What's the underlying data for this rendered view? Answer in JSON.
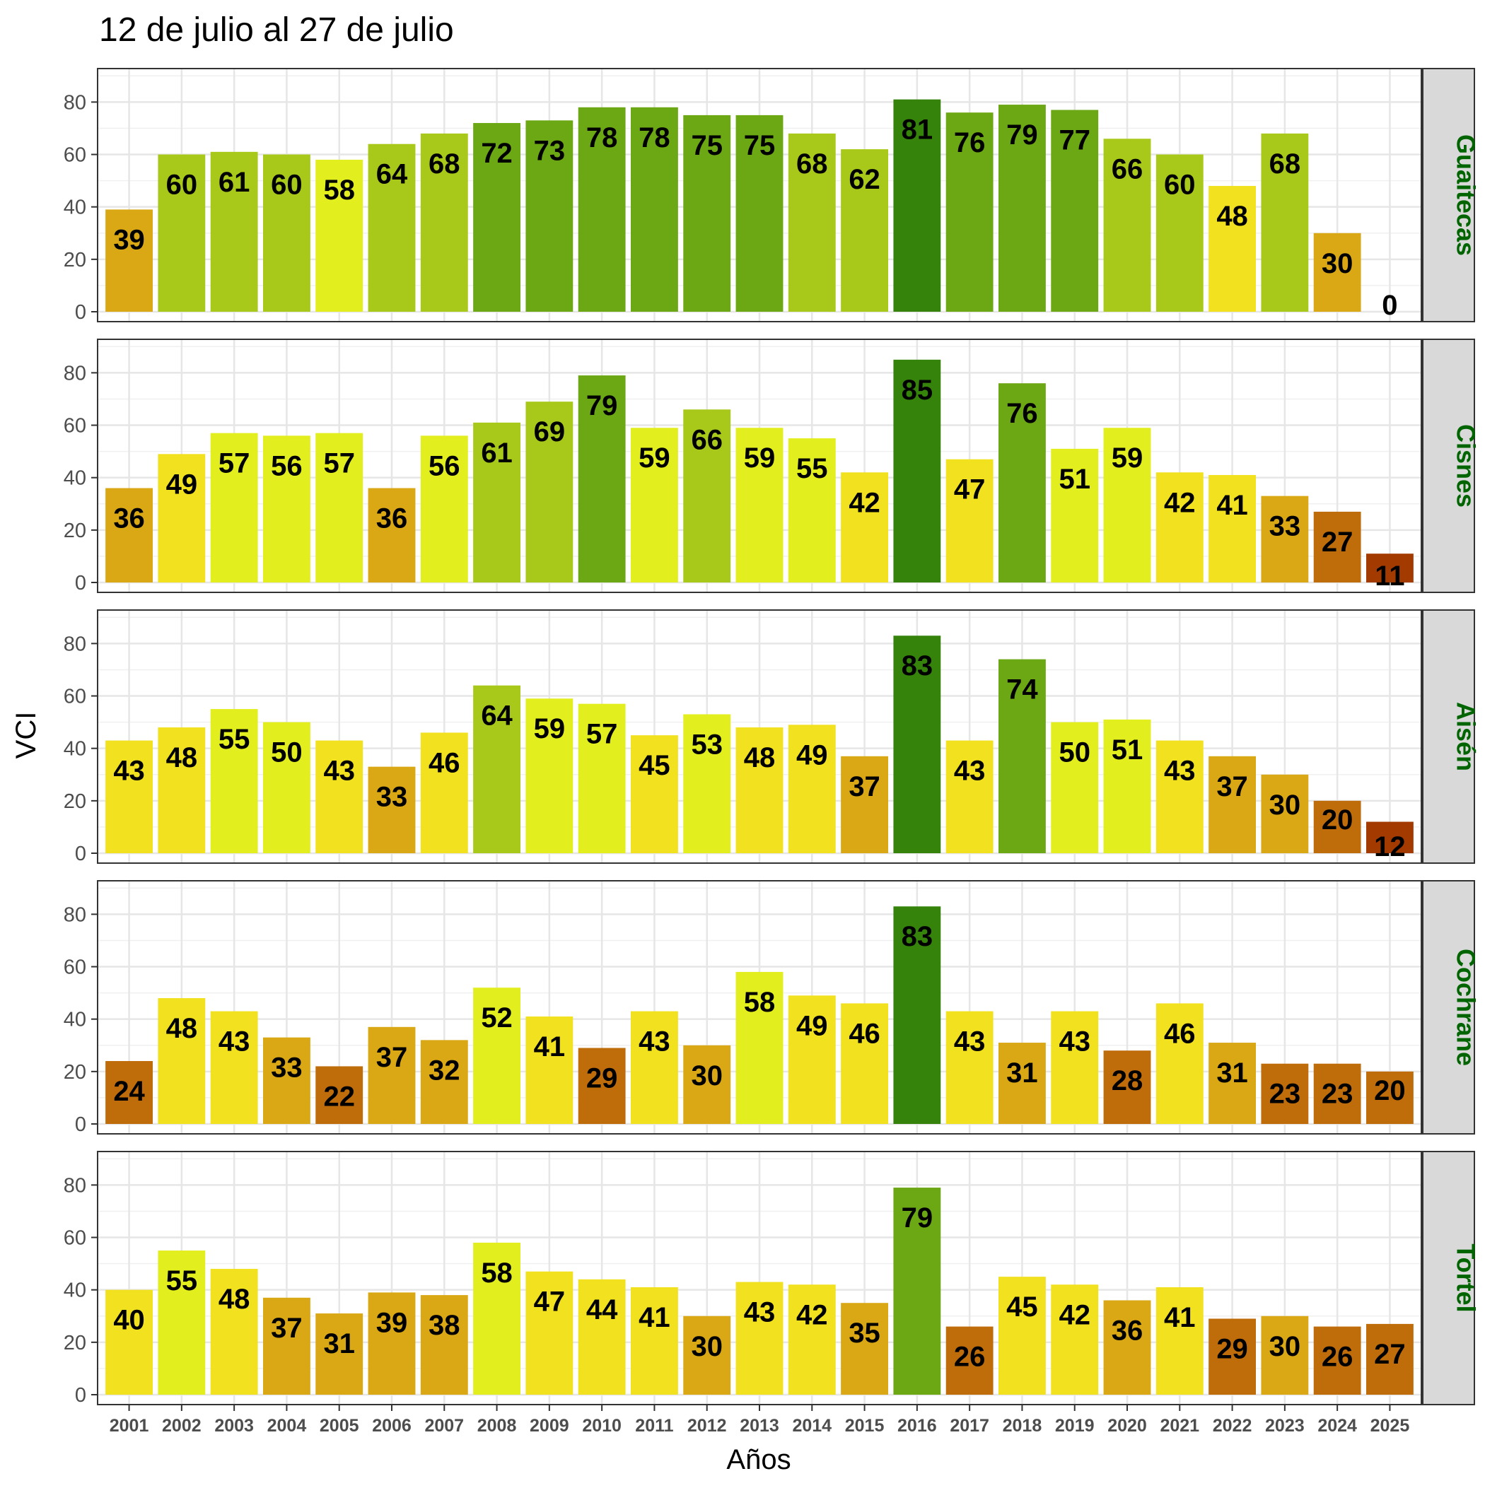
{
  "chart_data": {
    "type": "bar",
    "title": "12 de julio al 27 de julio",
    "xlabel": "Años",
    "ylabel": "VCI",
    "ylim": [
      0,
      89
    ],
    "yticks": [
      0,
      20,
      40,
      60,
      80
    ],
    "grid": true,
    "strip_color": "#006400",
    "categories": [
      "2001",
      "2002",
      "2003",
      "2004",
      "2005",
      "2006",
      "2007",
      "2008",
      "2009",
      "2010",
      "2011",
      "2012",
      "2013",
      "2014",
      "2015",
      "2016",
      "2017",
      "2018",
      "2019",
      "2020",
      "2021",
      "2022",
      "2023",
      "2024",
      "2025"
    ],
    "panels": [
      {
        "name": "Guaitecas",
        "values": [
          39,
          60,
          61,
          60,
          58,
          64,
          68,
          72,
          73,
          78,
          78,
          75,
          75,
          68,
          62,
          81,
          76,
          79,
          77,
          66,
          60,
          48,
          68,
          30,
          0
        ]
      },
      {
        "name": "Cisnes",
        "values": [
          36,
          49,
          57,
          56,
          57,
          36,
          56,
          61,
          69,
          79,
          59,
          66,
          59,
          55,
          42,
          85,
          47,
          76,
          51,
          59,
          42,
          41,
          33,
          27,
          11
        ]
      },
      {
        "name": "Aisén",
        "values": [
          43,
          48,
          55,
          50,
          43,
          33,
          46,
          64,
          59,
          57,
          45,
          53,
          48,
          49,
          37,
          83,
          43,
          74,
          50,
          51,
          43,
          37,
          30,
          20,
          12
        ]
      },
      {
        "name": "Cochrane",
        "values": [
          24,
          48,
          43,
          33,
          22,
          37,
          32,
          52,
          41,
          29,
          43,
          30,
          58,
          49,
          46,
          83,
          43,
          31,
          43,
          28,
          46,
          31,
          23,
          23,
          20
        ]
      },
      {
        "name": "Tortel",
        "values": [
          40,
          55,
          48,
          37,
          31,
          39,
          38,
          58,
          47,
          44,
          41,
          30,
          43,
          42,
          35,
          79,
          26,
          45,
          42,
          36,
          41,
          29,
          30,
          26,
          27
        ]
      }
    ],
    "color_scale": [
      {
        "min": 0,
        "color": "#A33A00"
      },
      {
        "min": 20,
        "color": "#BF6C0A"
      },
      {
        "min": 30,
        "color": "#D9A814"
      },
      {
        "min": 40,
        "color": "#F1E11F"
      },
      {
        "min": 50,
        "color": "#E2EE1E"
      },
      {
        "min": 60,
        "color": "#A8C919"
      },
      {
        "min": 70,
        "color": "#6CA714"
      },
      {
        "min": 80,
        "color": "#35830B"
      }
    ]
  }
}
